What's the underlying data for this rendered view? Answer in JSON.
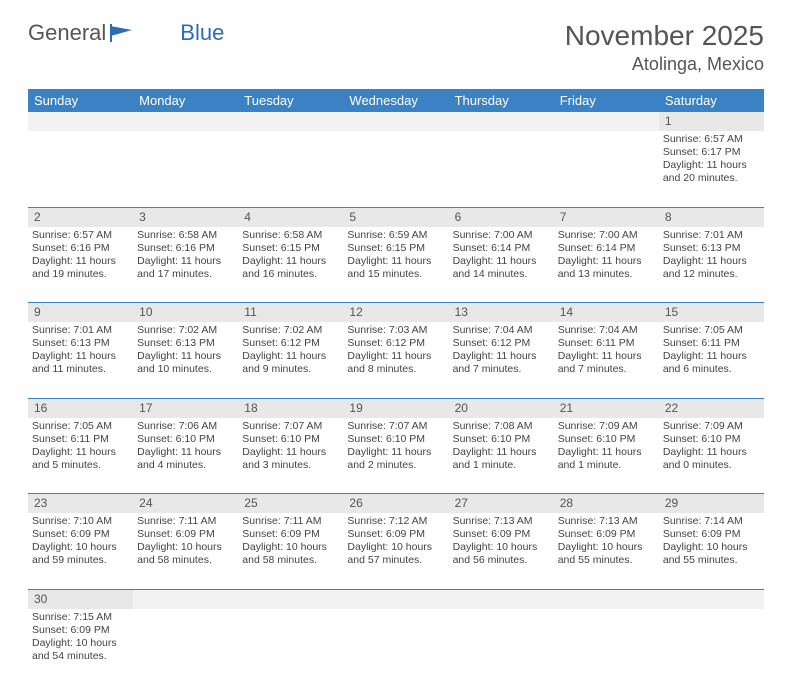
{
  "logo": {
    "text1": "General",
    "text2": "Blue"
  },
  "title": "November 2025",
  "location": "Atolinga, Mexico",
  "colors": {
    "header_bg": "#3b82c4",
    "header_fg": "#ffffff",
    "daynum_bg": "#e8e8e8",
    "border": "#3b82c4",
    "text": "#444444",
    "logo_blue": "#2a6db5"
  },
  "daysOfWeek": [
    "Sunday",
    "Monday",
    "Tuesday",
    "Wednesday",
    "Thursday",
    "Friday",
    "Saturday"
  ],
  "weeks": [
    [
      null,
      null,
      null,
      null,
      null,
      null,
      {
        "n": "1",
        "sr": "6:57 AM",
        "ss": "6:17 PM",
        "dl": "11 hours and 20 minutes."
      }
    ],
    [
      {
        "n": "2",
        "sr": "6:57 AM",
        "ss": "6:16 PM",
        "dl": "11 hours and 19 minutes."
      },
      {
        "n": "3",
        "sr": "6:58 AM",
        "ss": "6:16 PM",
        "dl": "11 hours and 17 minutes."
      },
      {
        "n": "4",
        "sr": "6:58 AM",
        "ss": "6:15 PM",
        "dl": "11 hours and 16 minutes."
      },
      {
        "n": "5",
        "sr": "6:59 AM",
        "ss": "6:15 PM",
        "dl": "11 hours and 15 minutes."
      },
      {
        "n": "6",
        "sr": "7:00 AM",
        "ss": "6:14 PM",
        "dl": "11 hours and 14 minutes."
      },
      {
        "n": "7",
        "sr": "7:00 AM",
        "ss": "6:14 PM",
        "dl": "11 hours and 13 minutes."
      },
      {
        "n": "8",
        "sr": "7:01 AM",
        "ss": "6:13 PM",
        "dl": "11 hours and 12 minutes."
      }
    ],
    [
      {
        "n": "9",
        "sr": "7:01 AM",
        "ss": "6:13 PM",
        "dl": "11 hours and 11 minutes."
      },
      {
        "n": "10",
        "sr": "7:02 AM",
        "ss": "6:13 PM",
        "dl": "11 hours and 10 minutes."
      },
      {
        "n": "11",
        "sr": "7:02 AM",
        "ss": "6:12 PM",
        "dl": "11 hours and 9 minutes."
      },
      {
        "n": "12",
        "sr": "7:03 AM",
        "ss": "6:12 PM",
        "dl": "11 hours and 8 minutes."
      },
      {
        "n": "13",
        "sr": "7:04 AM",
        "ss": "6:12 PM",
        "dl": "11 hours and 7 minutes."
      },
      {
        "n": "14",
        "sr": "7:04 AM",
        "ss": "6:11 PM",
        "dl": "11 hours and 7 minutes."
      },
      {
        "n": "15",
        "sr": "7:05 AM",
        "ss": "6:11 PM",
        "dl": "11 hours and 6 minutes."
      }
    ],
    [
      {
        "n": "16",
        "sr": "7:05 AM",
        "ss": "6:11 PM",
        "dl": "11 hours and 5 minutes."
      },
      {
        "n": "17",
        "sr": "7:06 AM",
        "ss": "6:10 PM",
        "dl": "11 hours and 4 minutes."
      },
      {
        "n": "18",
        "sr": "7:07 AM",
        "ss": "6:10 PM",
        "dl": "11 hours and 3 minutes."
      },
      {
        "n": "19",
        "sr": "7:07 AM",
        "ss": "6:10 PM",
        "dl": "11 hours and 2 minutes."
      },
      {
        "n": "20",
        "sr": "7:08 AM",
        "ss": "6:10 PM",
        "dl": "11 hours and 1 minute."
      },
      {
        "n": "21",
        "sr": "7:09 AM",
        "ss": "6:10 PM",
        "dl": "11 hours and 1 minute."
      },
      {
        "n": "22",
        "sr": "7:09 AM",
        "ss": "6:10 PM",
        "dl": "11 hours and 0 minutes."
      }
    ],
    [
      {
        "n": "23",
        "sr": "7:10 AM",
        "ss": "6:09 PM",
        "dl": "10 hours and 59 minutes."
      },
      {
        "n": "24",
        "sr": "7:11 AM",
        "ss": "6:09 PM",
        "dl": "10 hours and 58 minutes."
      },
      {
        "n": "25",
        "sr": "7:11 AM",
        "ss": "6:09 PM",
        "dl": "10 hours and 58 minutes."
      },
      {
        "n": "26",
        "sr": "7:12 AM",
        "ss": "6:09 PM",
        "dl": "10 hours and 57 minutes."
      },
      {
        "n": "27",
        "sr": "7:13 AM",
        "ss": "6:09 PM",
        "dl": "10 hours and 56 minutes."
      },
      {
        "n": "28",
        "sr": "7:13 AM",
        "ss": "6:09 PM",
        "dl": "10 hours and 55 minutes."
      },
      {
        "n": "29",
        "sr": "7:14 AM",
        "ss": "6:09 PM",
        "dl": "10 hours and 55 minutes."
      }
    ],
    [
      {
        "n": "30",
        "sr": "7:15 AM",
        "ss": "6:09 PM",
        "dl": "10 hours and 54 minutes."
      },
      null,
      null,
      null,
      null,
      null,
      null
    ]
  ],
  "labels": {
    "sunrise": "Sunrise:",
    "sunset": "Sunset:",
    "daylight": "Daylight:"
  }
}
